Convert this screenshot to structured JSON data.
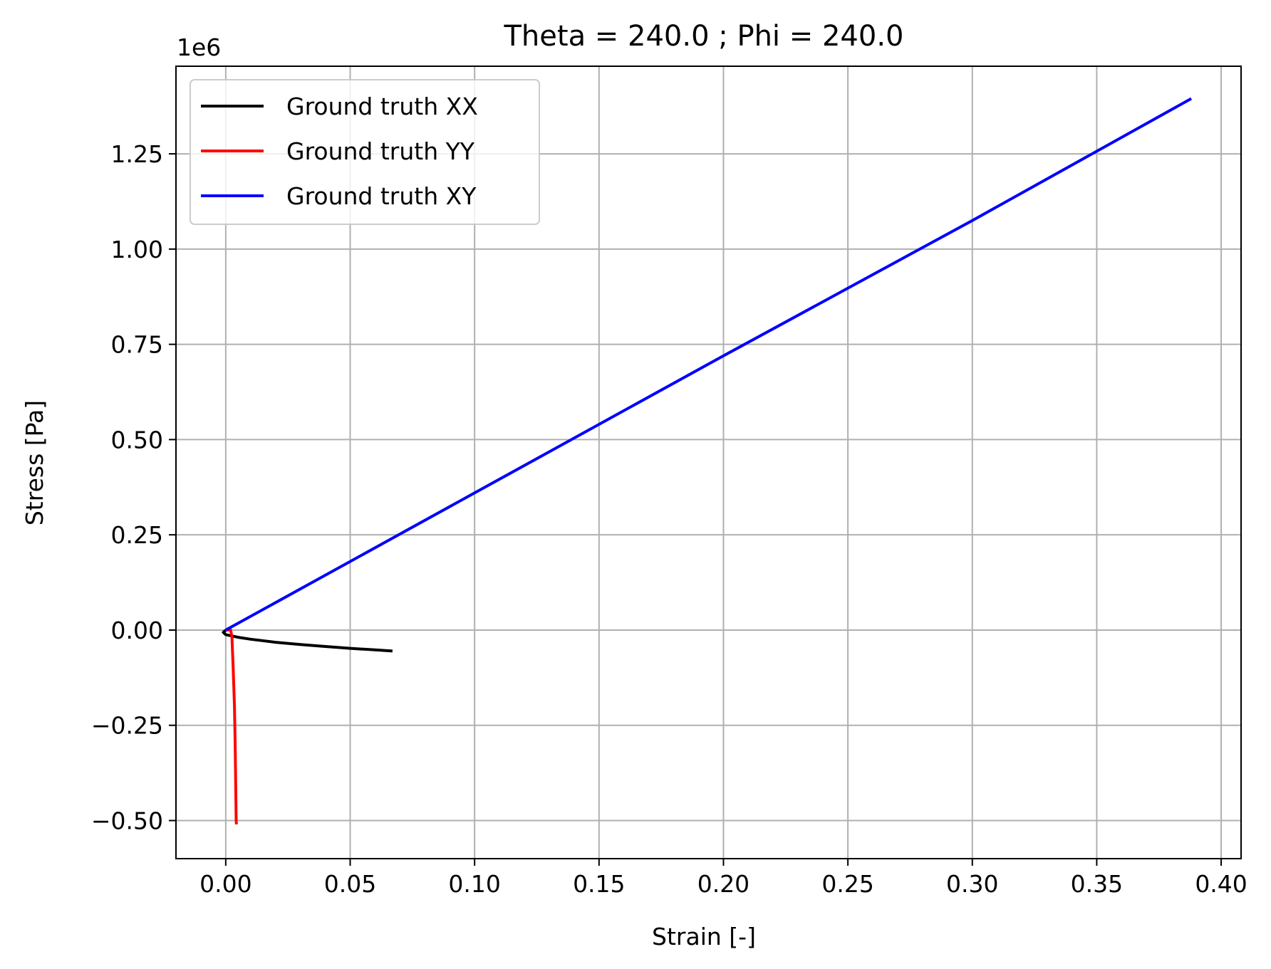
{
  "chart_data": {
    "type": "line",
    "title": "Theta = 240.0 ; Phi = 240.0",
    "xlabel": "Strain [-]",
    "ylabel": "Stress [Pa]",
    "y_offset_label": "1e6",
    "xlim": [
      -0.02,
      0.408
    ],
    "ylim": [
      -0.6,
      1.48
    ],
    "y_scale_multiplier": 1000000,
    "x_ticks": [
      0.0,
      0.05,
      0.1,
      0.15,
      0.2,
      0.25,
      0.3,
      0.35,
      0.4
    ],
    "x_tick_labels": [
      "0.00",
      "0.05",
      "0.10",
      "0.15",
      "0.20",
      "0.25",
      "0.30",
      "0.35",
      "0.40"
    ],
    "y_ticks": [
      -0.5,
      -0.25,
      0.0,
      0.25,
      0.5,
      0.75,
      1.0,
      1.25
    ],
    "y_tick_labels": [
      "−0.50",
      "−0.25",
      "0.00",
      "0.25",
      "0.50",
      "0.75",
      "1.00",
      "1.25"
    ],
    "grid": true,
    "legend_position": "upper-left",
    "series": [
      {
        "name": "Ground truth XX",
        "color": "#000000",
        "points": [
          [
            0.0,
            0.0
          ],
          [
            -0.001,
            -0.006
          ],
          [
            0.0,
            -0.012
          ],
          [
            0.005,
            -0.019
          ],
          [
            0.01,
            -0.024
          ],
          [
            0.02,
            -0.032
          ],
          [
            0.03,
            -0.038
          ],
          [
            0.04,
            -0.043
          ],
          [
            0.05,
            -0.048
          ],
          [
            0.06,
            -0.052
          ],
          [
            0.067,
            -0.055
          ]
        ]
      },
      {
        "name": "Ground truth YY",
        "color": "#ff0000",
        "points": [
          [
            0.0,
            0.0
          ],
          [
            0.002,
            0.0
          ],
          [
            0.0025,
            -0.02
          ],
          [
            0.003,
            -0.1
          ],
          [
            0.0035,
            -0.2
          ],
          [
            0.0038,
            -0.3
          ],
          [
            0.004,
            -0.4
          ],
          [
            0.0042,
            -0.5
          ],
          [
            0.0043,
            -0.51
          ]
        ]
      },
      {
        "name": "Ground truth XY",
        "color": "#0000ff",
        "points": [
          [
            0.0,
            0.0
          ],
          [
            0.1,
            0.36
          ],
          [
            0.2,
            0.72
          ],
          [
            0.3,
            1.075
          ],
          [
            0.388,
            1.395
          ]
        ]
      }
    ]
  }
}
